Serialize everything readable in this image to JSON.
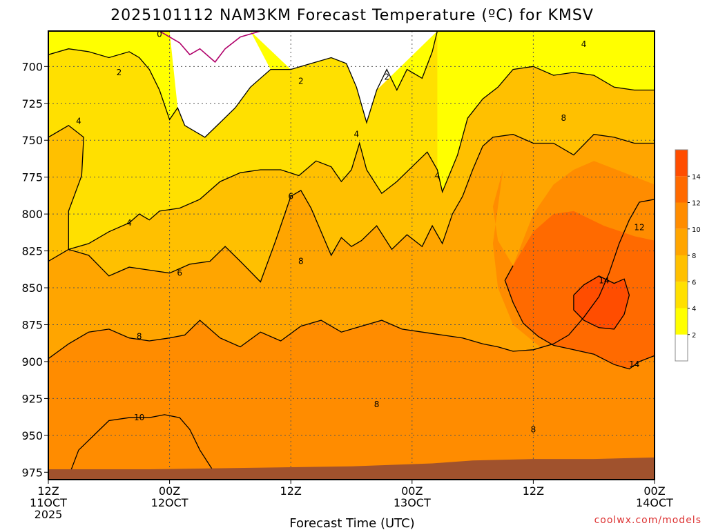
{
  "chart_data": {
    "type": "heatmap",
    "title": "2025101112 NAM3KM Forecast Temperature (ºC) for KMSV",
    "xlabel": "Forecast Time (UTC)",
    "ylabel": "",
    "watermark": "coolwx.com/models",
    "y_axis": {
      "unit": "hPa",
      "ticks": [
        700,
        725,
        750,
        775,
        800,
        825,
        850,
        875,
        900,
        925,
        950,
        975
      ],
      "range": [
        676,
        980
      ]
    },
    "x_axis": {
      "unit": "forecast hour",
      "range": [
        0,
        60
      ],
      "ticks": [
        {
          "hour": 0,
          "line1": "12Z",
          "line2": "11OCT",
          "line3": "2025"
        },
        {
          "hour": 12,
          "line1": "00Z",
          "line2": "12OCT",
          "line3": ""
        },
        {
          "hour": 24,
          "line1": "12Z",
          "line2": "",
          "line3": ""
        },
        {
          "hour": 36,
          "line1": "00Z",
          "line2": "13OCT",
          "line3": ""
        },
        {
          "hour": 48,
          "line1": "12Z",
          "line2": "",
          "line3": ""
        },
        {
          "hour": 60,
          "line1": "00Z",
          "line2": "14OCT",
          "line3": ""
        }
      ]
    },
    "colorbar": {
      "levels": [
        2,
        4,
        6,
        8,
        10,
        12,
        14
      ],
      "colors": [
        "#ffffff",
        "#ffff00",
        "#ffe000",
        "#ffc000",
        "#ffa500",
        "#ff8c00",
        "#ff6a00",
        "#ff4d00"
      ]
    },
    "colors": {
      "ground": "#a0522d",
      "zero_contour": "#b0006a",
      "grid": "#555555"
    },
    "contour_labels": [
      {
        "text": "0",
        "hour": 11,
        "p": 678
      },
      {
        "text": "2",
        "hour": 7,
        "p": 704
      },
      {
        "text": "2",
        "hour": 25,
        "p": 710
      },
      {
        "text": "2",
        "hour": 33.5,
        "p": 707
      },
      {
        "text": "4",
        "hour": 3,
        "p": 737
      },
      {
        "text": "4",
        "hour": 30.5,
        "p": 746
      },
      {
        "text": "4",
        "hour": 38.5,
        "p": 774
      },
      {
        "text": "4",
        "hour": 53,
        "p": 685
      },
      {
        "text": "4",
        "hour": 8,
        "p": 806
      },
      {
        "text": "6",
        "hour": 24,
        "p": 788
      },
      {
        "text": "6",
        "hour": 13,
        "p": 840
      },
      {
        "text": "8",
        "hour": 25,
        "p": 832
      },
      {
        "text": "8",
        "hour": 51,
        "p": 735
      },
      {
        "text": "8",
        "hour": 9,
        "p": 883
      },
      {
        "text": "8",
        "hour": 32.5,
        "p": 929
      },
      {
        "text": "8",
        "hour": 48,
        "p": 946
      },
      {
        "text": "10",
        "hour": 9,
        "p": 938
      },
      {
        "text": "12",
        "hour": 58.5,
        "p": 809
      },
      {
        "text": "14",
        "hour": 55,
        "p": 845
      },
      {
        "text": "14",
        "hour": 58,
        "p": 902
      }
    ],
    "series": [
      {
        "name": "",
        "level": 0,
        "points": [
          [
            11,
            676
          ],
          [
            13,
            684
          ],
          [
            14,
            692
          ],
          [
            15,
            688
          ],
          [
            16.5,
            697
          ],
          [
            17.5,
            688
          ],
          [
            19,
            680
          ],
          [
            21,
            676
          ]
        ]
      },
      {
        "name": "",
        "level": 2,
        "points": [
          [
            0,
            692
          ],
          [
            2,
            688
          ],
          [
            4,
            690
          ],
          [
            6,
            694
          ],
          [
            8,
            690
          ],
          [
            9,
            694
          ],
          [
            10,
            702
          ],
          [
            11,
            716
          ],
          [
            12,
            736
          ],
          [
            12.8,
            728
          ],
          [
            13.5,
            740
          ],
          [
            15.5,
            748
          ],
          [
            17,
            738
          ],
          [
            18.5,
            728
          ],
          [
            20,
            714
          ],
          [
            22,
            702
          ],
          [
            24,
            702
          ],
          [
            26,
            698
          ],
          [
            28,
            694
          ],
          [
            29.5,
            698
          ],
          [
            30.5,
            714
          ],
          [
            31.5,
            738
          ],
          [
            32.5,
            716
          ],
          [
            33.5,
            702
          ],
          [
            34.5,
            716
          ],
          [
            35.5,
            702
          ],
          [
            37,
            708
          ],
          [
            38,
            690
          ],
          [
            38.5,
            676
          ]
        ]
      },
      {
        "name": "",
        "level": 4,
        "points": [
          [
            0,
            748
          ],
          [
            2,
            740
          ],
          [
            3.5,
            748
          ],
          [
            3.3,
            774
          ],
          [
            2,
            798
          ],
          [
            2,
            824
          ],
          [
            4,
            820
          ],
          [
            6,
            812
          ],
          [
            8,
            806
          ],
          [
            9,
            800
          ],
          [
            10,
            804
          ],
          [
            11,
            798
          ],
          [
            13,
            796
          ],
          [
            15,
            790
          ],
          [
            17,
            778
          ],
          [
            19,
            772
          ],
          [
            21,
            770
          ],
          [
            23,
            770
          ],
          [
            24.8,
            774
          ],
          [
            26.5,
            764
          ],
          [
            28,
            768
          ],
          [
            29,
            778
          ],
          [
            30,
            770
          ],
          [
            30.8,
            752
          ],
          [
            31.5,
            770
          ],
          [
            33,
            786
          ],
          [
            34.5,
            778
          ],
          [
            36,
            768
          ],
          [
            37.5,
            758
          ],
          [
            38.5,
            770
          ],
          [
            39,
            785
          ],
          [
            40.5,
            760
          ],
          [
            41.5,
            735
          ],
          [
            43,
            722
          ],
          [
            44.5,
            714
          ],
          [
            46,
            702
          ],
          [
            48,
            700
          ],
          [
            50,
            706
          ],
          [
            52,
            704
          ],
          [
            54,
            706
          ],
          [
            56,
            714
          ],
          [
            58,
            716
          ],
          [
            60,
            716
          ]
        ]
      },
      {
        "name": "",
        "level": 6,
        "points": [
          [
            0,
            832
          ],
          [
            2,
            824
          ],
          [
            4,
            828
          ],
          [
            6,
            842
          ],
          [
            8,
            836
          ],
          [
            10,
            838
          ],
          [
            12,
            840
          ],
          [
            14,
            834
          ],
          [
            16,
            832
          ],
          [
            17.5,
            822
          ],
          [
            19,
            832
          ],
          [
            21,
            846
          ],
          [
            22.5,
            818
          ],
          [
            24,
            788
          ],
          [
            25,
            784
          ],
          [
            26,
            796
          ],
          [
            27,
            812
          ],
          [
            28,
            828
          ],
          [
            29,
            816
          ],
          [
            30,
            822
          ],
          [
            31,
            818
          ],
          [
            32.5,
            808
          ],
          [
            34,
            824
          ],
          [
            35.5,
            814
          ],
          [
            37,
            822
          ],
          [
            38,
            808
          ],
          [
            39,
            820
          ],
          [
            40,
            800
          ],
          [
            41,
            788
          ],
          [
            42,
            770
          ],
          [
            43,
            754
          ],
          [
            44,
            748
          ],
          [
            46,
            746
          ],
          [
            48,
            752
          ],
          [
            50,
            752
          ],
          [
            52,
            760
          ],
          [
            54,
            746
          ],
          [
            56,
            748
          ],
          [
            58,
            752
          ],
          [
            60,
            752
          ]
        ]
      },
      {
        "name": "",
        "level": 8,
        "points": [
          [
            0,
            898
          ],
          [
            2,
            888
          ],
          [
            4,
            880
          ],
          [
            6,
            878
          ],
          [
            8,
            884
          ],
          [
            10,
            886
          ],
          [
            12,
            884
          ],
          [
            13.5,
            882
          ],
          [
            15,
            872
          ],
          [
            17,
            884
          ],
          [
            19,
            890
          ],
          [
            21,
            880
          ],
          [
            23,
            886
          ],
          [
            25,
            876
          ],
          [
            27,
            872
          ],
          [
            29,
            880
          ],
          [
            31,
            876
          ],
          [
            33,
            872
          ],
          [
            35,
            878
          ],
          [
            37,
            880
          ],
          [
            39,
            882
          ],
          [
            41,
            884
          ],
          [
            43,
            888
          ],
          [
            44.5,
            890
          ],
          [
            46,
            893
          ],
          [
            48,
            892
          ],
          [
            50,
            888
          ],
          [
            51.5,
            882
          ],
          [
            53,
            870
          ],
          [
            54.5,
            856
          ],
          [
            55.5,
            840
          ],
          [
            56.5,
            820
          ],
          [
            57.5,
            804
          ],
          [
            58.5,
            792
          ],
          [
            60,
            790
          ]
        ]
      },
      {
        "name": "",
        "level": 10,
        "points": [
          [
            2,
            978
          ],
          [
            3,
            960
          ],
          [
            4.5,
            950
          ],
          [
            6,
            940
          ],
          [
            8,
            938
          ],
          [
            10,
            938
          ],
          [
            11.5,
            936
          ],
          [
            13,
            938
          ],
          [
            14,
            946
          ],
          [
            15,
            960
          ],
          [
            16.5,
            976
          ]
        ]
      },
      {
        "name": "",
        "level": 12,
        "points": [
          [
            46,
            835
          ],
          [
            45.2,
            845
          ],
          [
            46,
            860
          ],
          [
            47,
            874
          ],
          [
            48.5,
            883
          ],
          [
            50,
            889
          ],
          [
            52,
            892
          ],
          [
            54,
            895
          ],
          [
            56,
            902
          ],
          [
            57.5,
            905
          ],
          [
            58.5,
            900
          ],
          [
            60,
            896
          ]
        ]
      },
      {
        "name": "",
        "level": 14,
        "points": [
          [
            52,
            855
          ],
          [
            53,
            848
          ],
          [
            54.5,
            842
          ],
          [
            56,
            847
          ],
          [
            57,
            844
          ],
          [
            57.5,
            855
          ],
          [
            57,
            868
          ],
          [
            56,
            878
          ],
          [
            54.5,
            877
          ],
          [
            53,
            872
          ],
          [
            52,
            865
          ],
          [
            52,
            855
          ]
        ]
      }
    ]
  }
}
